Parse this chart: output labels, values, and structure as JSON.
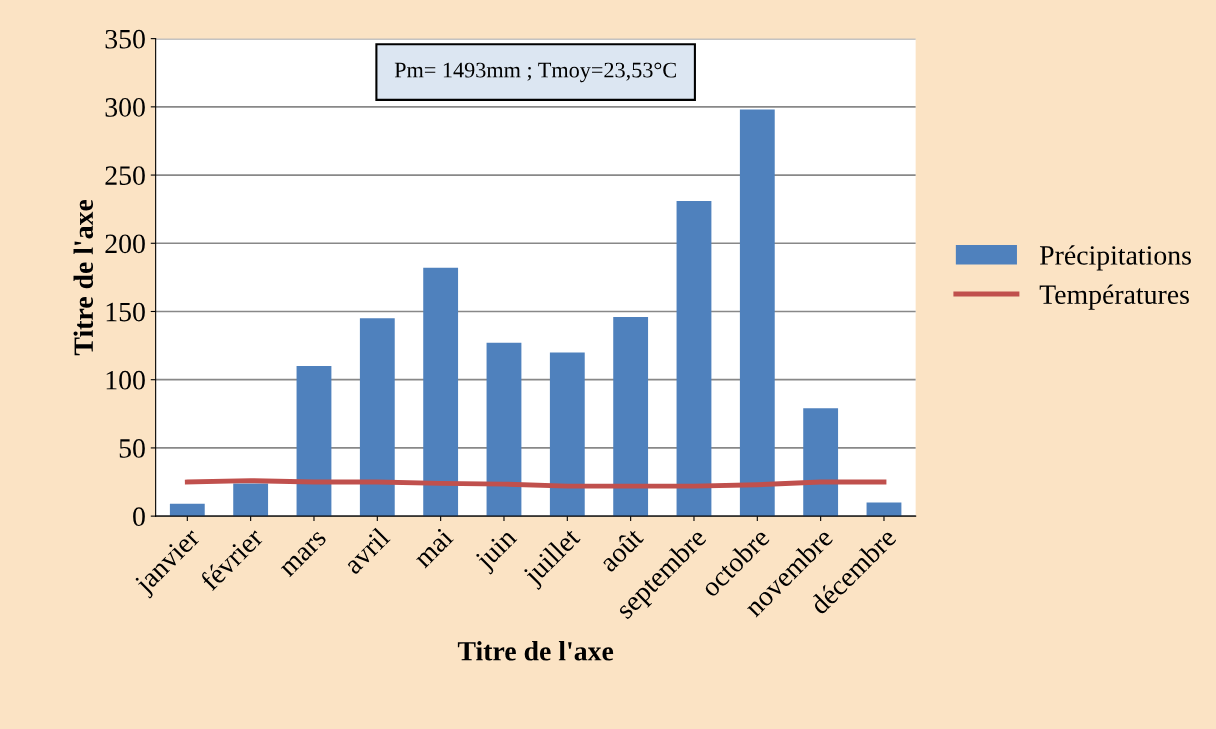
{
  "chart_data": {
    "type": "bar",
    "xlabel": "Titre de l'axe",
    "ylabel": "Titre de l'axe",
    "categories": [
      "janvier",
      "février",
      "mars",
      "avril",
      "mai",
      "juin",
      "juillet",
      "août",
      "septembre",
      "octobre",
      "novembre",
      "décembre"
    ],
    "series": [
      {
        "name": "Précipitations",
        "color": "#4f81bd",
        "values": [
          9,
          24,
          110,
          145,
          182,
          127,
          120,
          146,
          231,
          298,
          79,
          10
        ]
      },
      {
        "name": "Températures",
        "type": "line",
        "color": "#c0504d",
        "values": [
          25,
          26,
          25,
          25,
          24,
          23.5,
          22,
          22,
          22,
          23,
          25,
          25
        ]
      }
    ],
    "ylim": [
      0,
      350
    ],
    "yticks": [
      0,
      50,
      100,
      150,
      200,
      250,
      300,
      350
    ],
    "grid": "y",
    "legend": "right",
    "annotations": [
      "Pm= 1493mm ; Tmoy=23,53°C"
    ]
  }
}
